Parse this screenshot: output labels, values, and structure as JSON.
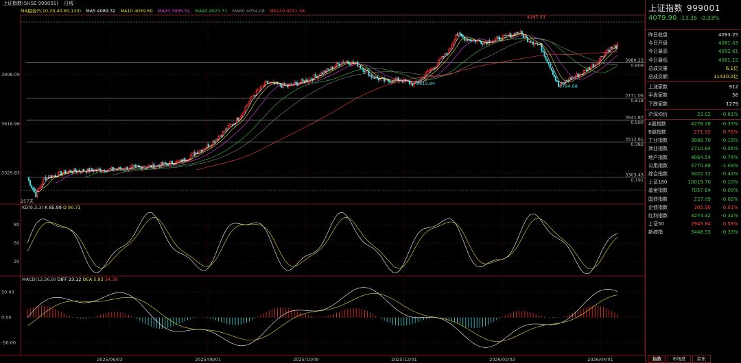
{
  "header": {
    "title": "上证指数(SHSE 999001)",
    "period": "日线"
  },
  "ma": {
    "group": "MA组合(5,10,20,40,60,120)",
    "ma5": "MA5 4089.32",
    "ma10": "MA10 4059.60",
    "ma20": "MA20 3995.52",
    "ma40": "MA40 4023.71",
    "ma60": "MA60 4054.08",
    "ma120": "MA120 4011.34"
  },
  "kd": {
    "label": "KD(9,3,3)",
    "k": "K 85.99",
    "d": "D 90.71"
  },
  "macd": {
    "label": "MACD(12,26,9)",
    "diff": "DIFF 23.12",
    "dea": "DEA 5.93",
    "val": "34.39"
  },
  "axis": {
    "price_ticks": [
      "3908.09",
      "3618.96",
      "3329.83"
    ],
    "kd_ticks": [
      "80",
      "50",
      "20"
    ],
    "macd_ticks": [
      "50.00",
      "0.00",
      "-50.00"
    ],
    "dates": [
      "2025/06/03",
      "2025/08/01",
      "2025/10/09",
      "2025/12/01",
      "2026/02/02",
      "2026/04/01"
    ]
  },
  "annotations": {
    "high": "4197.23",
    "low1": "3815.84",
    "low2": "3794.68",
    "days": "257天"
  },
  "fib": [
    {
      "price": "3980.23",
      "ratio": "0.809"
    },
    {
      "price": "3771.06",
      "ratio": "0.618"
    },
    {
      "price": "3641.83",
      "ratio": "0.500"
    },
    {
      "price": "3512.61",
      "ratio": "0.382"
    },
    {
      "price": "3303.43",
      "ratio": "0.191"
    }
  ],
  "side": {
    "name": "上证指数",
    "code": "999001",
    "price": "4079.90",
    "chg": "-13.35",
    "pct": "-0.33%",
    "stats": [
      {
        "l": "昨日收盘",
        "v": "4093.25",
        "c": "w"
      },
      {
        "l": "今日开盘",
        "v": "4081.03",
        "c": "g"
      },
      {
        "l": "今日最高",
        "v": "4092.61",
        "c": "g"
      },
      {
        "l": "今日最低",
        "v": "4061.15",
        "c": "g"
      },
      {
        "l": "总成交量",
        "v": "6.1亿",
        "c": "y"
      },
      {
        "l": "总成交额",
        "v": "11430.0亿",
        "c": "y"
      }
    ],
    "breadth": [
      {
        "l": "上涨家数",
        "v": "912"
      },
      {
        "l": "平盘家数",
        "v": "56"
      },
      {
        "l": "下跌家数",
        "v": "1279"
      }
    ],
    "avg": {
      "l": "沪深均价",
      "v": "23.02",
      "p": "-0.61%"
    },
    "indices": [
      {
        "l": "A股指数",
        "v": "4278.28",
        "p": "-0.33%",
        "c": "g"
      },
      {
        "l": "B股指数",
        "v": "271.92",
        "p": "0.76%",
        "c": "rd"
      },
      {
        "l": "工业指数",
        "v": "3889.70",
        "p": "-0.19%",
        "c": "g"
      },
      {
        "l": "商业指数",
        "v": "2710.64",
        "p": "-0.56%",
        "c": "g"
      },
      {
        "l": "地产指数",
        "v": "4064.54",
        "p": "-0.74%",
        "c": "g"
      },
      {
        "l": "公用指数",
        "v": "4770.88",
        "p": "-1.03%",
        "c": "g"
      },
      {
        "l": "综合指数",
        "v": "3422.12",
        "p": "-0.43%",
        "c": "g"
      },
      {
        "l": "上证180",
        "v": "10019.70",
        "p": "-0.10%",
        "c": "g"
      },
      {
        "l": "基金指数",
        "v": "7057.64",
        "p": "-0.09%",
        "c": "g"
      },
      {
        "l": "国债指数",
        "v": "227.09",
        "p": "-0.02%",
        "c": "g"
      },
      {
        "l": "企债指数",
        "v": "305.90",
        "p": "0.01%",
        "c": "rd"
      },
      {
        "l": "红利指数",
        "v": "3274.32",
        "p": "-0.31%",
        "c": "g"
      },
      {
        "l": "上证50",
        "v": "2945.84",
        "p": "0.58%",
        "c": "rd"
      },
      {
        "l": "新综指",
        "v": "3448.53",
        "p": "-0.33%",
        "c": "g"
      }
    ],
    "tabs": [
      "指数",
      "市场度",
      "资讯"
    ]
  }
}
